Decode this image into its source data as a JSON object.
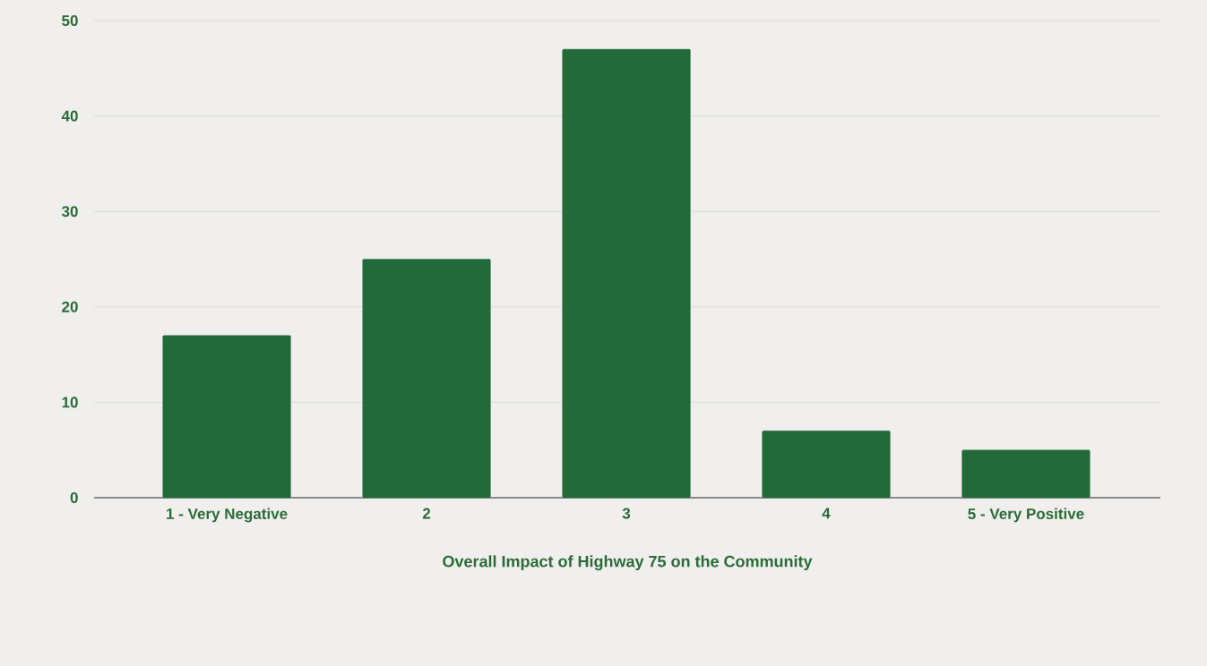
{
  "chart_data": {
    "type": "bar",
    "xlabel": "Overall Impact of Highway 75 on the Community",
    "categories": [
      "1 - Very Negative",
      "2",
      "3",
      "4",
      "5 - Very Positive"
    ],
    "values": [
      17,
      25,
      47,
      7,
      5
    ],
    "color": "#236a3a",
    "ylim": [
      0,
      50
    ],
    "yticks": [
      0,
      10,
      20,
      30,
      40,
      50
    ],
    "grid": "y"
  }
}
